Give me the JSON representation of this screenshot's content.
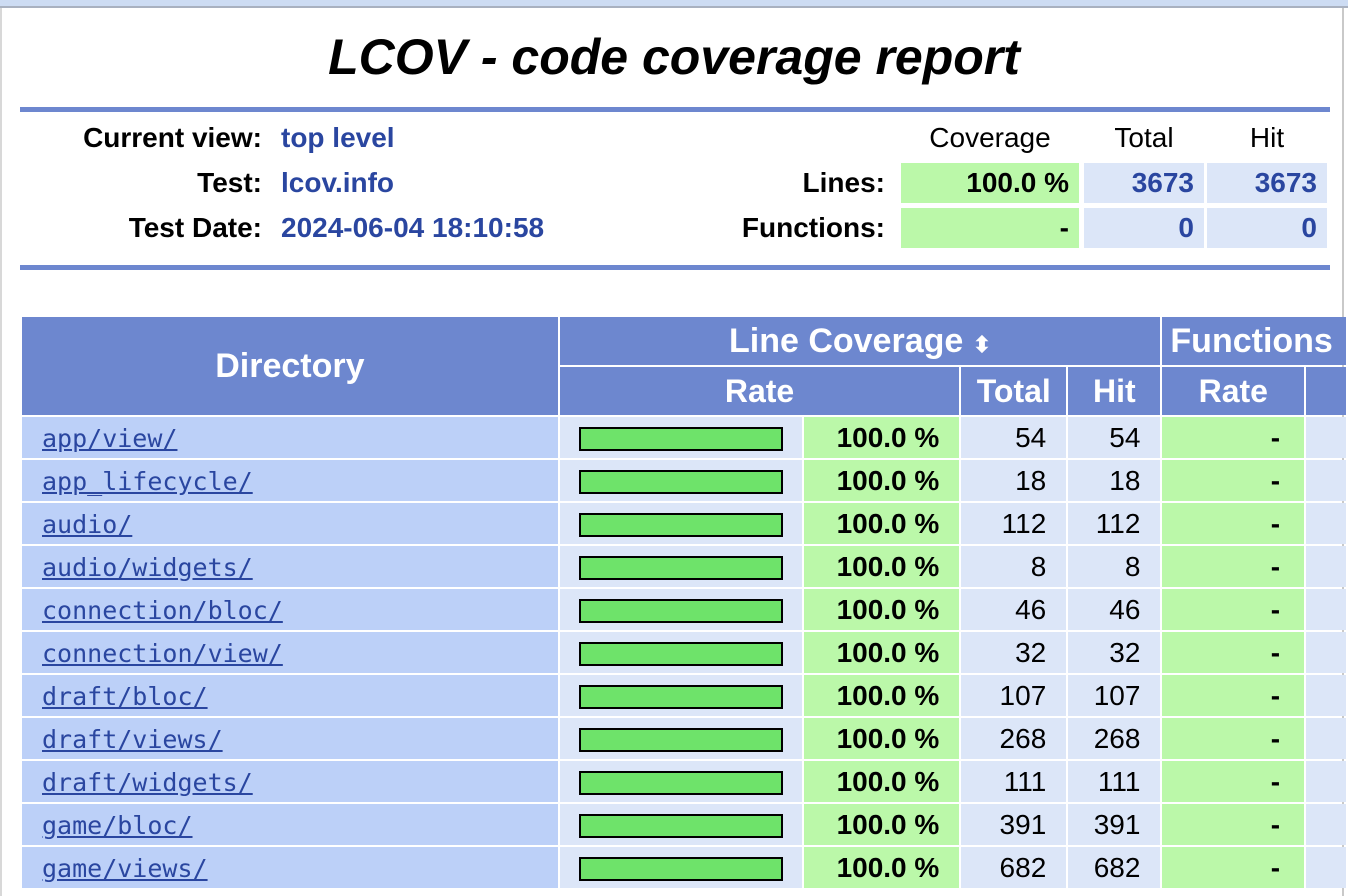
{
  "title": "LCOV - code coverage report",
  "info": {
    "current_view_label": "Current view:",
    "current_view": "top level",
    "test_label": "Test:",
    "test": "lcov.info",
    "test_date_label": "Test Date:",
    "test_date": "2024-06-04 18:10:58"
  },
  "summary": {
    "headers": {
      "coverage": "Coverage",
      "total": "Total",
      "hit": "Hit"
    },
    "lines": {
      "label": "Lines:",
      "coverage": "100.0 %",
      "total": "3673",
      "hit": "3673"
    },
    "functions": {
      "label": "Functions:",
      "coverage": "-",
      "total": "0",
      "hit": "0"
    }
  },
  "table": {
    "directory_header": "Directory",
    "line_coverage_header": "Line Coverage",
    "sort_icon": "sort-up-down-icon",
    "function_header": "Functions",
    "rate_header": "Rate",
    "total_header": "Total",
    "hit_header": "Hit",
    "function_rate_header": "Rate",
    "colors": {
      "bar": "#6ee36a",
      "rate_bg": "#bbf8a9",
      "header": "#6d87cf"
    },
    "rows": [
      {
        "dir": "app/view/",
        "coverage_pct": 100,
        "rate": "100.0 %",
        "total": "54",
        "hit": "54",
        "func_rate": "-"
      },
      {
        "dir": "app_lifecycle/",
        "coverage_pct": 100,
        "rate": "100.0 %",
        "total": "18",
        "hit": "18",
        "func_rate": "-"
      },
      {
        "dir": "audio/",
        "coverage_pct": 100,
        "rate": "100.0 %",
        "total": "112",
        "hit": "112",
        "func_rate": "-"
      },
      {
        "dir": "audio/widgets/",
        "coverage_pct": 100,
        "rate": "100.0 %",
        "total": "8",
        "hit": "8",
        "func_rate": "-"
      },
      {
        "dir": "connection/bloc/",
        "coverage_pct": 100,
        "rate": "100.0 %",
        "total": "46",
        "hit": "46",
        "func_rate": "-"
      },
      {
        "dir": "connection/view/",
        "coverage_pct": 100,
        "rate": "100.0 %",
        "total": "32",
        "hit": "32",
        "func_rate": "-"
      },
      {
        "dir": "draft/bloc/",
        "coverage_pct": 100,
        "rate": "100.0 %",
        "total": "107",
        "hit": "107",
        "func_rate": "-"
      },
      {
        "dir": "draft/views/",
        "coverage_pct": 100,
        "rate": "100.0 %",
        "total": "268",
        "hit": "268",
        "func_rate": "-"
      },
      {
        "dir": "draft/widgets/",
        "coverage_pct": 100,
        "rate": "100.0 %",
        "total": "111",
        "hit": "111",
        "func_rate": "-"
      },
      {
        "dir": "game/bloc/",
        "coverage_pct": 100,
        "rate": "100.0 %",
        "total": "391",
        "hit": "391",
        "func_rate": "-"
      },
      {
        "dir": "game/views/",
        "coverage_pct": 100,
        "rate": "100.0 %",
        "total": "682",
        "hit": "682",
        "func_rate": "-"
      }
    ]
  }
}
